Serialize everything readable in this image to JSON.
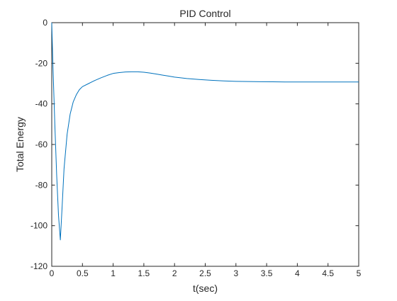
{
  "chart_data": {
    "type": "line",
    "title": "PID Control",
    "xlabel": "t(sec)",
    "ylabel": "Total Energy",
    "xlim": [
      0,
      5
    ],
    "ylim": [
      -120,
      0
    ],
    "xticks": [
      0,
      0.5,
      1,
      1.5,
      2,
      2.5,
      3,
      3.5,
      4,
      4.5,
      5
    ],
    "xtick_labels": [
      "0",
      "0.5",
      "1",
      "1.5",
      "2",
      "2.5",
      "3",
      "3.5",
      "4",
      "4.5",
      "5"
    ],
    "yticks": [
      0,
      -20,
      -40,
      -60,
      -80,
      -100,
      -120
    ],
    "ytick_labels": [
      "0",
      "-20",
      "-40",
      "-60",
      "-80",
      "-100",
      "-120"
    ],
    "grid": false,
    "box": true,
    "line_color": "#0072BD",
    "series": [
      {
        "x": [
          0,
          0.02,
          0.05,
          0.08,
          0.11,
          0.14,
          0.17,
          0.2,
          0.25,
          0.3,
          0.35,
          0.4,
          0.45,
          0.5,
          0.6,
          0.7,
          0.8,
          0.9,
          1.0,
          1.1,
          1.2,
          1.3,
          1.4,
          1.5,
          1.6,
          1.7,
          1.8,
          1.9,
          2.0,
          2.2,
          2.4,
          2.6,
          2.8,
          3.0,
          3.2,
          3.4,
          3.6,
          3.8,
          4.0,
          4.2,
          4.4,
          4.6,
          4.8,
          5.0
        ],
        "y": [
          0,
          -22,
          -50,
          -75,
          -95,
          -107,
          -90,
          -72,
          -55,
          -45,
          -39,
          -35.5,
          -33,
          -31.5,
          -30,
          -28.5,
          -27.2,
          -26,
          -25,
          -24.6,
          -24.3,
          -24.2,
          -24.2,
          -24.4,
          -24.8,
          -25.3,
          -25.8,
          -26.3,
          -26.8,
          -27.5,
          -28,
          -28.4,
          -28.7,
          -28.9,
          -29,
          -29.1,
          -29.15,
          -29.2,
          -29.2,
          -29.2,
          -29.2,
          -29.2,
          -29.2,
          -29.2
        ]
      }
    ]
  }
}
